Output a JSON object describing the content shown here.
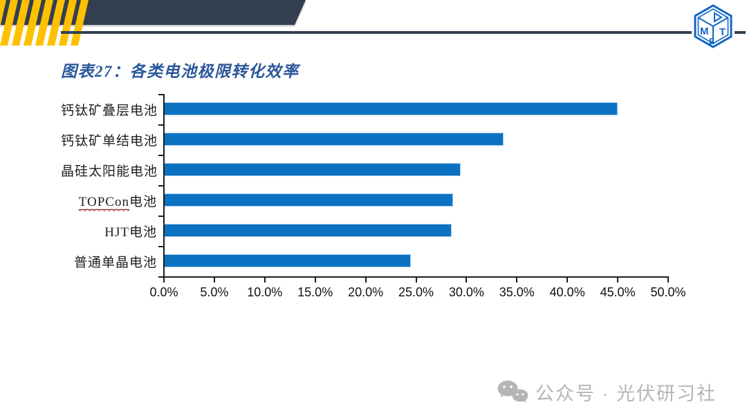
{
  "header": {
    "band_color": "#333f50",
    "stripe_color": "#ffc000",
    "rule_color": "#333f50",
    "logo": {
      "name": "met-cube-logo",
      "color": "#1266c4"
    }
  },
  "title": {
    "text": "图表27：各类电池极限转化效率",
    "color": "#2b579a"
  },
  "chart_data": {
    "type": "bar",
    "orientation": "horizontal",
    "title": "各类电池极限转化效率",
    "categories": [
      "钙钛矿叠层电池",
      "钙钛矿单结电池",
      "晶硅太阳能电池",
      "TOPCon电池",
      "HJT电池",
      "普通单晶电池"
    ],
    "values": [
      45.0,
      33.7,
      29.4,
      28.7,
      28.5,
      24.5
    ],
    "unit": "%",
    "xlim": [
      0,
      50
    ],
    "x_ticks": [
      "0.0%",
      "5.0%",
      "10.0%",
      "15.0%",
      "20.0%",
      "25.0%",
      "30.0%",
      "35.0%",
      "40.0%",
      "45.0%",
      "50.0%"
    ],
    "bar_color": "#0b72c2",
    "bar_border_color": "#a6c9ea",
    "grid": false,
    "legend": false,
    "spellcheck_underline": {
      "category_index": 3,
      "prefix": "TOPCon"
    }
  },
  "watermark": {
    "icon": "wechat-icon",
    "text": "公众号 · 光伏研习社",
    "color": "#b5b5b5"
  }
}
